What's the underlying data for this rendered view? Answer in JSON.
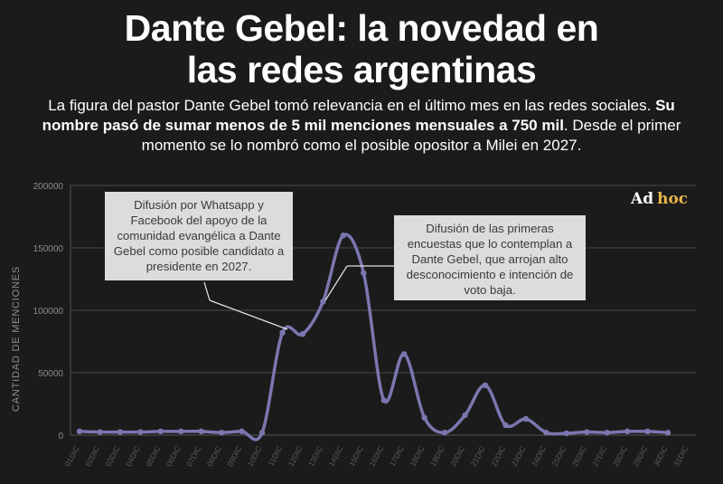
{
  "headline": {
    "title_line1": "Dante Gebel: la novedad en",
    "title_line2": "las redes argentinas",
    "intro_text": "La figura del pastor Dante Gebel tomó relevancia en el último mes en las redes sociales.",
    "intro_bold": "Su nombre pasó de sumar menos de 5 mil menciones mensuales a 750 mil",
    "intro_end": ". Desde el primer momento se lo nombró como el posible opositor a Milei en 2027."
  },
  "brand": {
    "part1": "Ad",
    "part2": "hoc"
  },
  "annotations": {
    "first": "Difusión por Whatsapp y Facebook del apoyo de la comunidad evangélica a Dante Gebel como posible candidato a presidente en 2027.",
    "second": "Difusión de las primeras encuestas que lo contemplan a Dante Gebel, que arrojan alto desconocimiento e intención de voto baja."
  },
  "colors": {
    "line": "#7a77b0",
    "grid": "#4a4a4a",
    "axis_text": "#8a8a8a",
    "callout_bg": "#dcdcdc",
    "background": "#1b1b1b"
  },
  "chart_data": {
    "type": "line",
    "ylabel": "CANTIDAD DE MENCIONES",
    "xlabel": "",
    "ylim": [
      0,
      200000
    ],
    "yticks": [
      0,
      50000,
      100000,
      150000,
      200000
    ],
    "grid": true,
    "categories": [
      "01DIC",
      "02DIC",
      "03DIC",
      "04DIC",
      "05DIC",
      "06DIC",
      "07DIC",
      "08DIC",
      "09DIC",
      "10DIC",
      "11DIC",
      "12DIC",
      "13DIC",
      "14DIC",
      "15DIC",
      "16DIC",
      "17DIC",
      "18DIC",
      "19DIC",
      "20DIC",
      "21DIC",
      "22DIC",
      "23DIC",
      "24DIC",
      "25DIC",
      "26DIC",
      "27DIC",
      "28DIC",
      "29DIC",
      "30DIC",
      "31DIC"
    ],
    "series": [
      {
        "name": "Menciones",
        "values": [
          3000,
          2500,
          2500,
          2500,
          3000,
          3000,
          3000,
          2000,
          3000,
          2000,
          82000,
          81000,
          107000,
          160000,
          130000,
          28000,
          65000,
          14000,
          2000,
          16000,
          40000,
          8000,
          13000,
          2000,
          1500,
          2500,
          2000,
          3000,
          3000,
          2000,
          null
        ]
      }
    ]
  }
}
